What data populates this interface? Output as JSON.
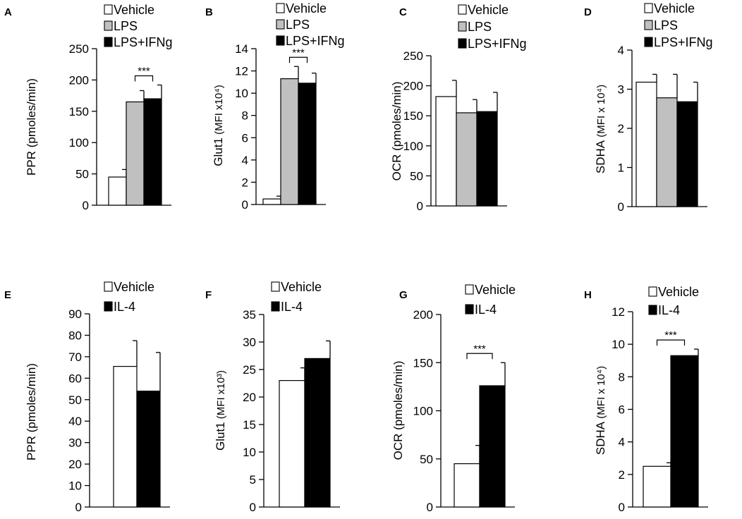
{
  "figure": {
    "background": "#ffffff"
  },
  "chart_data": [
    {
      "panel_letter": "A",
      "type": "bar",
      "ylabel": "PPR (pmoles/min)",
      "ylim": [
        0,
        250
      ],
      "ticks": [
        0,
        50,
        100,
        150,
        200,
        250
      ],
      "series": [
        {
          "name": "Vehicle",
          "fill": "#ffffff",
          "value": 45,
          "error": 12
        },
        {
          "name": "LPS",
          "fill": "#c0c0c0",
          "value": 165,
          "error": 18
        },
        {
          "name": "LPS+IFNg",
          "fill": "#000000",
          "value": 170,
          "error": 22
        }
      ],
      "significance": {
        "label": "***",
        "from": 1,
        "to": 2
      }
    },
    {
      "panel_letter": "B",
      "type": "bar",
      "ylabel": "Glut1",
      "ylabel_unit": "(MFI x10⁴)",
      "ylim": [
        0,
        14
      ],
      "ticks": [
        0,
        2,
        4,
        6,
        8,
        10,
        12,
        14
      ],
      "series": [
        {
          "name": "Vehicle",
          "fill": "#ffffff",
          "value": 0.5,
          "error": 0.25
        },
        {
          "name": "LPS",
          "fill": "#c0c0c0",
          "value": 11.3,
          "error": 1.1
        },
        {
          "name": "LPS+IFNg",
          "fill": "#000000",
          "value": 10.9,
          "error": 0.9
        }
      ],
      "significance": {
        "label": "***",
        "from": 1,
        "to": 2
      }
    },
    {
      "panel_letter": "C",
      "type": "bar",
      "ylabel": "OCR (pmoles/min)",
      "ylim": [
        0,
        250
      ],
      "ticks": [
        0,
        50,
        100,
        150,
        200,
        250
      ],
      "series": [
        {
          "name": "Vehicle",
          "fill": "#ffffff",
          "value": 182,
          "error": 27
        },
        {
          "name": "LPS",
          "fill": "#c0c0c0",
          "value": 155,
          "error": 22
        },
        {
          "name": "LPS+IFNg",
          "fill": "#000000",
          "value": 157,
          "error": 32
        }
      ],
      "significance": null
    },
    {
      "panel_letter": "D",
      "type": "bar",
      "ylabel": "SDHA",
      "ylabel_unit": "(MFI x 10⁴)",
      "ylim": [
        0,
        4
      ],
      "ticks": [
        0,
        1,
        2,
        3,
        4
      ],
      "series": [
        {
          "name": "Vehicle",
          "fill": "#ffffff",
          "value": 3.18,
          "error": 0.2
        },
        {
          "name": "LPS",
          "fill": "#c0c0c0",
          "value": 2.78,
          "error": 0.6
        },
        {
          "name": "LPS+IFNg",
          "fill": "#000000",
          "value": 2.68,
          "error": 0.5
        }
      ],
      "significance": null
    },
    {
      "panel_letter": "E",
      "type": "bar",
      "ylabel": "PPR (pmoles/min)",
      "ylim": [
        0,
        90
      ],
      "ticks": [
        0,
        10,
        20,
        30,
        40,
        50,
        60,
        70,
        80,
        90
      ],
      "series": [
        {
          "name": "Vehicle",
          "fill": "#ffffff",
          "value": 65.5,
          "error": 12
        },
        {
          "name": "IL-4",
          "fill": "#000000",
          "value": 54,
          "error": 18
        }
      ],
      "significance": null
    },
    {
      "panel_letter": "F",
      "type": "bar",
      "ylabel": "Glut1",
      "ylabel_unit": "(MFI x10³)",
      "ylim": [
        0,
        35
      ],
      "ticks": [
        0,
        5,
        10,
        15,
        20,
        25,
        30,
        35
      ],
      "series": [
        {
          "name": "Vehicle",
          "fill": "#ffffff",
          "value": 23,
          "error": 2.3
        },
        {
          "name": "IL-4",
          "fill": "#000000",
          "value": 27,
          "error": 3.2
        }
      ],
      "significance": null
    },
    {
      "panel_letter": "G",
      "type": "bar",
      "ylabel": "OCR (pmoles/min)",
      "ylim": [
        0,
        200
      ],
      "ticks": [
        0,
        50,
        100,
        150,
        200
      ],
      "series": [
        {
          "name": "Vehicle",
          "fill": "#ffffff",
          "value": 45,
          "error": 19
        },
        {
          "name": "IL-4",
          "fill": "#000000",
          "value": 126,
          "error": 24
        }
      ],
      "significance": {
        "label": "***",
        "from": 0,
        "to": 1
      }
    },
    {
      "panel_letter": "H",
      "type": "bar",
      "ylabel": "SDHA",
      "ylabel_unit": "(MFI x 10⁴)",
      "ylim": [
        0,
        12
      ],
      "ticks": [
        0,
        2,
        4,
        6,
        8,
        10,
        12
      ],
      "series": [
        {
          "name": "Vehicle",
          "fill": "#ffffff",
          "value": 2.5,
          "error": 0.22
        },
        {
          "name": "IL-4",
          "fill": "#000000",
          "value": 9.3,
          "error": 0.4
        }
      ],
      "significance": {
        "label": "***",
        "from": 0,
        "to": 1
      }
    }
  ]
}
